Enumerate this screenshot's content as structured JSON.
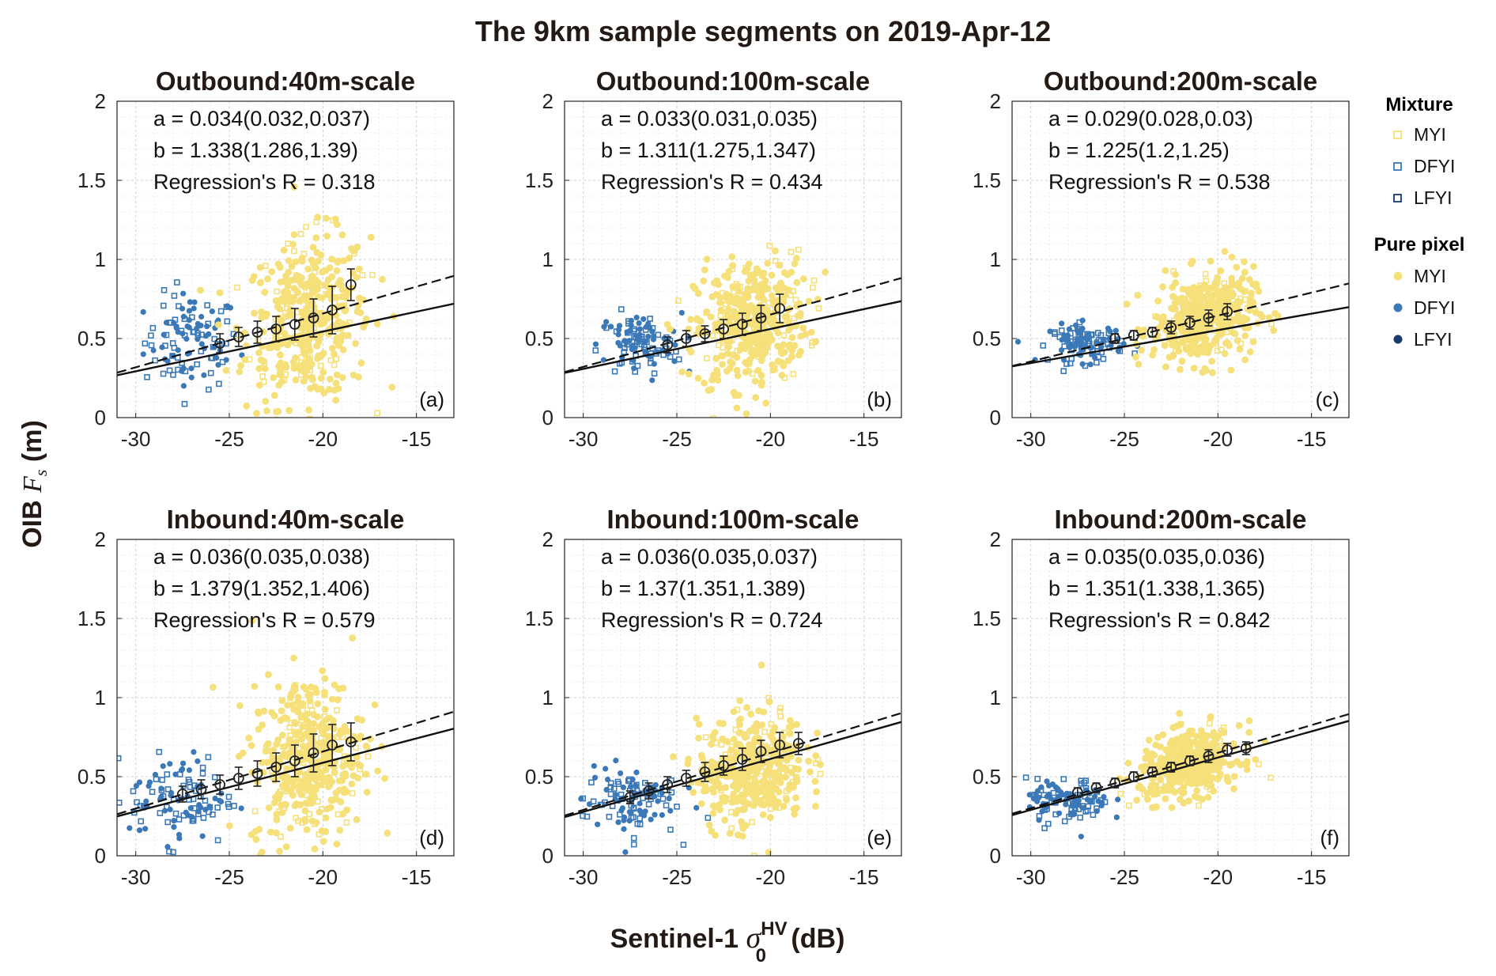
{
  "figure": {
    "title": "The 9km sample segments on 2019-Apr-12",
    "ylabel": {
      "prefix": "OIB ",
      "symbol": "F",
      "subscript": "s",
      "suffix": " (m)"
    },
    "xlabel": {
      "prefix": "Sentinel-1 ",
      "symbol": "σ",
      "subscript": "0",
      "superscript": "HV",
      "suffix": " (dB)"
    }
  },
  "legend": {
    "mixture_title": "Mixture",
    "pure_title": "Pure pixel",
    "mixture_items": [
      {
        "label": "MYI",
        "color": "#f5e07a"
      },
      {
        "label": "DFYI",
        "color": "#3a78b8"
      },
      {
        "label": "LFYI",
        "color": "#163a6e"
      }
    ],
    "pure_items": [
      {
        "label": "MYI",
        "color": "#f5e07a"
      },
      {
        "label": "DFYI",
        "color": "#3a78b8"
      },
      {
        "label": "LFYI",
        "color": "#163a6e"
      }
    ]
  },
  "chart_data": [
    {
      "type": "scatter",
      "title": "Outbound:40m-scale",
      "panel": "(a)",
      "a_text": "a = 0.034(0.032,0.037)",
      "b_text": "b = 1.338(1.286,1.39)",
      "r_text": "Regression's R = 0.318",
      "a": 0.034,
      "b": 1.338,
      "R": 0.318,
      "dash": [
        0.034,
        1.338
      ],
      "solid": [
        0.0251,
        1.046
      ],
      "xlim": [
        -31,
        -13
      ],
      "ylim": [
        0,
        2
      ],
      "xticks": [
        -30,
        -25,
        -20,
        -15
      ],
      "yticks": [
        0,
        0.5,
        1,
        1.5,
        2
      ],
      "bins_x": [
        -25.5,
        -24.5,
        -23.5,
        -22.5,
        -21.5,
        -20.5,
        -19.5,
        -18.5
      ],
      "bins_mean": [
        0.47,
        0.51,
        0.54,
        0.56,
        0.59,
        0.63,
        0.68,
        0.84
      ],
      "bins_std": [
        0.06,
        0.06,
        0.07,
        0.08,
        0.1,
        0.12,
        0.15,
        0.1
      ]
    },
    {
      "type": "scatter",
      "title": "Outbound:100m-scale",
      "panel": "(b)",
      "a_text": "a = 0.033(0.031,0.035)",
      "b_text": "b = 1.311(1.275,1.347)",
      "r_text": "Regression's R = 0.434",
      "a": 0.033,
      "b": 1.311,
      "R": 0.434,
      "dash": [
        0.033,
        1.311
      ],
      "solid": [
        0.0252,
        1.064
      ],
      "xlim": [
        -31,
        -13
      ],
      "ylim": [
        0,
        2
      ],
      "xticks": [
        -30,
        -25,
        -20,
        -15
      ],
      "yticks": [
        0,
        0.5,
        1,
        1.5,
        2
      ],
      "bins_x": [
        -25.5,
        -24.5,
        -23.5,
        -22.5,
        -21.5,
        -20.5,
        -19.5
      ],
      "bins_mean": [
        0.46,
        0.5,
        0.53,
        0.56,
        0.59,
        0.63,
        0.69
      ],
      "bins_std": [
        0.05,
        0.05,
        0.05,
        0.06,
        0.07,
        0.08,
        0.09
      ]
    },
    {
      "type": "scatter",
      "title": "Outbound:200m-scale",
      "panel": "(c)",
      "a_text": "a = 0.029(0.028,0.03)",
      "b_text": "b = 1.225(1.2,1.25)",
      "r_text": "Regression's R = 0.538",
      "a": 0.029,
      "b": 1.225,
      "R": 0.538,
      "dash": [
        0.029,
        1.225
      ],
      "solid": [
        0.0208,
        0.969
      ],
      "xlim": [
        -31,
        -13
      ],
      "ylim": [
        0,
        2
      ],
      "xticks": [
        -30,
        -25,
        -20,
        -15
      ],
      "yticks": [
        0,
        0.5,
        1,
        1.5,
        2
      ],
      "bins_x": [
        -25.5,
        -24.5,
        -23.5,
        -22.5,
        -21.5,
        -20.5,
        -19.5
      ],
      "bins_mean": [
        0.5,
        0.52,
        0.54,
        0.57,
        0.6,
        0.63,
        0.67
      ],
      "bins_std": [
        0.03,
        0.03,
        0.03,
        0.04,
        0.04,
        0.05,
        0.05
      ]
    },
    {
      "type": "scatter",
      "title": "Inbound:40m-scale",
      "panel": "(d)",
      "a_text": "a = 0.036(0.035,0.038)",
      "b_text": "b = 1.379(1.352,1.406)",
      "r_text": "Regression's R = 0.579",
      "a": 0.036,
      "b": 1.379,
      "R": 0.579,
      "dash": [
        0.036,
        1.379
      ],
      "solid": [
        0.0308,
        1.204
      ],
      "xlim": [
        -31,
        -13
      ],
      "ylim": [
        0,
        2
      ],
      "xticks": [
        -30,
        -25,
        -20,
        -15
      ],
      "yticks": [
        0,
        0.5,
        1,
        1.5,
        2
      ],
      "bins_x": [
        -27.5,
        -26.5,
        -25.5,
        -24.5,
        -23.5,
        -22.5,
        -21.5,
        -20.5,
        -19.5,
        -18.5
      ],
      "bins_mean": [
        0.39,
        0.42,
        0.45,
        0.49,
        0.52,
        0.56,
        0.6,
        0.65,
        0.7,
        0.72
      ],
      "bins_std": [
        0.05,
        0.06,
        0.06,
        0.07,
        0.08,
        0.09,
        0.1,
        0.12,
        0.13,
        0.12
      ]
    },
    {
      "type": "scatter",
      "title": "Inbound:100m-scale",
      "panel": "(e)",
      "a_text": "a = 0.036(0.035,0.037)",
      "b_text": "b = 1.37(1.351,1.389)",
      "r_text": "Regression's R = 0.724",
      "a": 0.036,
      "b": 1.37,
      "R": 0.724,
      "dash": [
        0.036,
        1.37
      ],
      "solid": [
        0.0334,
        1.28
      ],
      "xlim": [
        -31,
        -13
      ],
      "ylim": [
        0,
        2
      ],
      "xticks": [
        -30,
        -25,
        -20,
        -15
      ],
      "yticks": [
        0,
        0.5,
        1,
        1.5,
        2
      ],
      "bins_x": [
        -27.5,
        -26.5,
        -25.5,
        -24.5,
        -23.5,
        -22.5,
        -21.5,
        -20.5,
        -19.5,
        -18.5
      ],
      "bins_mean": [
        0.37,
        0.41,
        0.45,
        0.49,
        0.53,
        0.57,
        0.61,
        0.66,
        0.7,
        0.71
      ],
      "bins_std": [
        0.04,
        0.05,
        0.05,
        0.05,
        0.06,
        0.06,
        0.07,
        0.07,
        0.08,
        0.07
      ]
    },
    {
      "type": "scatter",
      "title": "Inbound:200m-scale",
      "panel": "(f)",
      "a_text": "a = 0.035(0.035,0.036)",
      "b_text": "b = 1.351(1.338,1.365)",
      "r_text": "Regression's R = 0.842",
      "a": 0.035,
      "b": 1.351,
      "R": 0.842,
      "dash": [
        0.035,
        1.351
      ],
      "solid": [
        0.0331,
        1.283
      ],
      "xlim": [
        -31,
        -13
      ],
      "ylim": [
        0,
        2
      ],
      "xticks": [
        -30,
        -25,
        -20,
        -15
      ],
      "yticks": [
        0,
        0.5,
        1,
        1.5,
        2
      ],
      "bins_x": [
        -27.5,
        -26.5,
        -25.5,
        -24.5,
        -23.5,
        -22.5,
        -21.5,
        -20.5,
        -19.5,
        -18.5
      ],
      "bins_mean": [
        0.4,
        0.43,
        0.46,
        0.5,
        0.53,
        0.56,
        0.6,
        0.63,
        0.67,
        0.68
      ],
      "bins_std": [
        0.03,
        0.03,
        0.03,
        0.03,
        0.03,
        0.03,
        0.03,
        0.04,
        0.04,
        0.04
      ]
    }
  ]
}
